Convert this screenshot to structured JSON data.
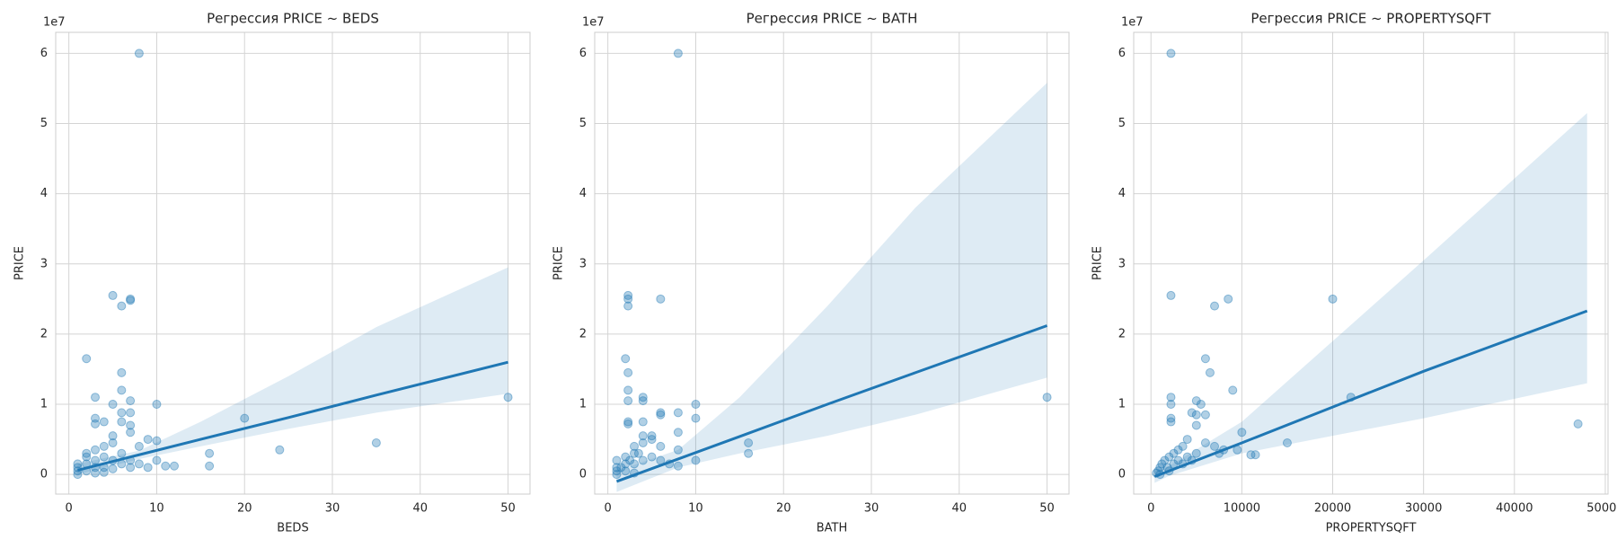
{
  "chart_data": [
    {
      "type": "scatter",
      "title": "Регрессия PRICE ~ BEDS",
      "xlabel": "BEDS",
      "ylabel": "PRICE",
      "y_offset_label": "1e7",
      "color": "#1f77b4",
      "grid": true,
      "xlim": [
        -1.5,
        52.5
      ],
      "xticks": [
        0,
        10,
        20,
        30,
        40,
        50
      ],
      "ylim": [
        -0.28,
        6.3
      ],
      "yticks": [
        0,
        1,
        2,
        3,
        4,
        5,
        6
      ],
      "x": [
        8,
        7,
        7,
        5,
        6,
        2,
        6,
        6,
        3,
        5,
        7,
        10,
        50,
        20,
        3,
        3,
        6,
        4,
        6,
        7,
        7,
        7,
        35,
        24,
        16,
        16,
        10,
        9,
        10,
        11,
        12,
        8,
        5,
        5,
        4,
        3,
        2,
        1,
        1,
        1,
        2,
        2,
        3,
        3,
        4,
        4,
        5,
        5,
        6,
        6,
        7,
        7,
        8,
        9,
        3,
        2,
        1,
        4
      ],
      "y": [
        6.0,
        2.5,
        2.48,
        2.55,
        2.4,
        1.65,
        1.45,
        1.2,
        1.1,
        1.0,
        1.05,
        1.0,
        1.1,
        0.8,
        0.8,
        0.72,
        0.75,
        0.75,
        0.88,
        0.88,
        0.7,
        0.6,
        0.45,
        0.35,
        0.3,
        0.12,
        0.48,
        0.5,
        0.2,
        0.12,
        0.12,
        0.4,
        0.55,
        0.45,
        0.4,
        0.35,
        0.3,
        0.1,
        0.05,
        0.15,
        0.05,
        0.15,
        0.1,
        0.2,
        0.1,
        0.25,
        0.2,
        0.08,
        0.15,
        0.3,
        0.2,
        0.1,
        0.15,
        0.1,
        0.02,
        0.25,
        0.0,
        0.03
      ],
      "fit": {
        "x": [
          1,
          8,
          15,
          25,
          35,
          50
        ],
        "y": [
          0.06,
          0.28,
          0.5,
          0.81,
          1.13,
          1.6
        ],
        "lower": [
          0.0,
          0.22,
          0.4,
          0.65,
          0.88,
          1.15
        ],
        "upper": [
          0.15,
          0.34,
          0.75,
          1.4,
          2.1,
          2.95
        ]
      }
    },
    {
      "type": "scatter",
      "title": "Регрессия PRICE ~ BATH",
      "xlabel": "BATH",
      "ylabel": "PRICE",
      "y_offset_label": "1e7",
      "color": "#1f77b4",
      "grid": true,
      "xlim": [
        -1.5,
        52.5
      ],
      "xticks": [
        0,
        10,
        20,
        30,
        40,
        50
      ],
      "ylim": [
        -0.28,
        6.3
      ],
      "yticks": [
        0,
        1,
        2,
        3,
        4,
        5,
        6
      ],
      "x": [
        8,
        2.3,
        2.3,
        2.3,
        6,
        2,
        2.3,
        2.3,
        2.3,
        4,
        4,
        10,
        50,
        10,
        2.3,
        2.3,
        6,
        6,
        8,
        8,
        4,
        16,
        16,
        10,
        8,
        8,
        7,
        5,
        4,
        3,
        3,
        2,
        1,
        1,
        1,
        1.5,
        2,
        2.5,
        3,
        3.5,
        4,
        5,
        6,
        6,
        1,
        2,
        5,
        4,
        3
      ],
      "y": [
        6.0,
        2.55,
        2.5,
        2.4,
        2.5,
        1.65,
        1.45,
        1.2,
        1.05,
        1.1,
        1.05,
        1.0,
        1.1,
        0.8,
        0.75,
        0.72,
        0.88,
        0.85,
        0.88,
        0.6,
        0.75,
        0.45,
        0.3,
        0.2,
        0.35,
        0.12,
        0.15,
        0.5,
        0.45,
        0.4,
        0.3,
        0.25,
        0.05,
        0.1,
        0.2,
        0.1,
        0.15,
        0.2,
        0.15,
        0.3,
        0.2,
        0.25,
        0.4,
        0.2,
        0.0,
        0.05,
        0.55,
        0.55,
        0.02
      ],
      "fit": {
        "x": [
          1,
          8,
          15,
          25,
          35,
          50
        ],
        "y": [
          -0.1,
          0.22,
          0.54,
          1.0,
          1.45,
          2.12
        ],
        "lower": [
          -0.25,
          0.1,
          0.3,
          0.55,
          0.85,
          1.38
        ],
        "upper": [
          0.05,
          0.35,
          1.1,
          2.4,
          3.8,
          5.58
        ]
      }
    },
    {
      "type": "scatter",
      "title": "Регрессия PRICE ~ PROPERTYSQFT",
      "xlabel": "PROPERTYSQFT",
      "ylabel": "PRICE",
      "y_offset_label": "1e7",
      "color": "#1f77b4",
      "grid": true,
      "xlim": [
        -1900,
        50300
      ],
      "xticks": [
        0,
        10000,
        20000,
        30000,
        40000,
        50000
      ],
      "ylim": [
        -0.28,
        6.3
      ],
      "yticks": [
        0,
        1,
        2,
        3,
        4,
        5,
        6
      ],
      "x": [
        2200,
        2200,
        7000,
        8500,
        20000,
        6000,
        6500,
        9000,
        2200,
        2200,
        5000,
        5500,
        22000,
        2200,
        2200,
        4500,
        5000,
        6000,
        47000,
        10000,
        15000,
        11000,
        11500,
        9500,
        7500,
        5000,
        4000,
        3500,
        3000,
        2500,
        2000,
        1500,
        1000,
        800,
        600,
        1200,
        1800,
        2500,
        3000,
        4000,
        5000,
        6000,
        2000,
        1000,
        3500,
        4500,
        7000,
        8000
      ],
      "y": [
        6.0,
        2.55,
        2.4,
        2.5,
        2.5,
        1.65,
        1.45,
        1.2,
        1.1,
        1.0,
        1.05,
        1.0,
        1.1,
        0.8,
        0.75,
        0.88,
        0.85,
        0.85,
        0.72,
        0.6,
        0.45,
        0.28,
        0.28,
        0.35,
        0.3,
        0.7,
        0.5,
        0.4,
        0.35,
        0.3,
        0.25,
        0.2,
        0.1,
        0.05,
        0.02,
        0.15,
        0.1,
        0.15,
        0.2,
        0.25,
        0.3,
        0.45,
        0.05,
        0.0,
        0.15,
        0.2,
        0.4,
        0.35
      ],
      "fit": {
        "x": [
          400,
          2000,
          10000,
          20000,
          30000,
          48000
        ],
        "y": [
          -0.03,
          0.05,
          0.45,
          0.96,
          1.47,
          2.33
        ],
        "lower": [
          -0.12,
          -0.02,
          0.3,
          0.55,
          0.8,
          1.3
        ],
        "upper": [
          0.05,
          0.12,
          0.75,
          1.9,
          3.05,
          5.15
        ]
      }
    }
  ]
}
